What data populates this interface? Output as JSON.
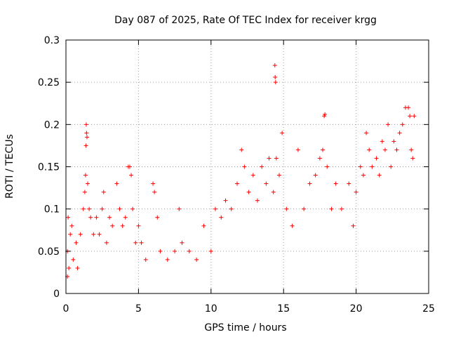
{
  "chart_data": {
    "type": "scatter",
    "title": "Day 087 of 2025, Rate Of TEC Index for receiver krgg",
    "xlabel": "GPS time / hours",
    "ylabel": "ROTI / TECUs",
    "xlim": [
      0,
      25
    ],
    "ylim": [
      0,
      0.3
    ],
    "xticks": [
      "0",
      "5",
      "10",
      "15",
      "20",
      "25"
    ],
    "yticks": [
      "0",
      "0.05",
      "0.1",
      "0.15",
      "0.2",
      "0.25",
      "0.3"
    ],
    "grid": true,
    "marker": "plus",
    "color": "#ff0000",
    "series": [
      {
        "name": "",
        "points": [
          [
            0.1,
            0.02
          ],
          [
            0.1,
            0.05
          ],
          [
            0.15,
            0.09
          ],
          [
            0.2,
            0.03
          ],
          [
            0.3,
            0.07
          ],
          [
            0.4,
            0.08
          ],
          [
            0.5,
            0.04
          ],
          [
            0.7,
            0.06
          ],
          [
            0.8,
            0.03
          ],
          [
            1.0,
            0.07
          ],
          [
            1.2,
            0.1
          ],
          [
            1.3,
            0.12
          ],
          [
            1.35,
            0.14
          ],
          [
            1.4,
            0.2
          ],
          [
            1.42,
            0.19
          ],
          [
            1.45,
            0.185
          ],
          [
            1.38,
            0.175
          ],
          [
            1.5,
            0.13
          ],
          [
            1.6,
            0.1
          ],
          [
            1.7,
            0.09
          ],
          [
            1.9,
            0.07
          ],
          [
            2.1,
            0.09
          ],
          [
            2.3,
            0.07
          ],
          [
            2.5,
            0.1
          ],
          [
            2.6,
            0.12
          ],
          [
            2.8,
            0.06
          ],
          [
            3.0,
            0.09
          ],
          [
            3.2,
            0.08
          ],
          [
            3.5,
            0.13
          ],
          [
            3.7,
            0.1
          ],
          [
            3.9,
            0.08
          ],
          [
            4.1,
            0.09
          ],
          [
            4.3,
            0.15
          ],
          [
            4.4,
            0.15
          ],
          [
            4.5,
            0.14
          ],
          [
            4.6,
            0.1
          ],
          [
            4.8,
            0.06
          ],
          [
            5.0,
            0.08
          ],
          [
            5.2,
            0.06
          ],
          [
            5.5,
            0.04
          ],
          [
            6.0,
            0.13
          ],
          [
            6.1,
            0.12
          ],
          [
            6.3,
            0.09
          ],
          [
            6.5,
            0.05
          ],
          [
            7.0,
            0.04
          ],
          [
            7.5,
            0.05
          ],
          [
            7.8,
            0.1
          ],
          [
            8.0,
            0.06
          ],
          [
            8.5,
            0.05
          ],
          [
            9.0,
            0.04
          ],
          [
            9.5,
            0.08
          ],
          [
            10.0,
            0.05
          ],
          [
            10.3,
            0.1
          ],
          [
            10.7,
            0.09
          ],
          [
            11.0,
            0.11
          ],
          [
            11.4,
            0.1
          ],
          [
            11.8,
            0.13
          ],
          [
            12.1,
            0.17
          ],
          [
            12.3,
            0.15
          ],
          [
            12.6,
            0.12
          ],
          [
            12.9,
            0.14
          ],
          [
            13.2,
            0.11
          ],
          [
            13.5,
            0.15
          ],
          [
            13.8,
            0.13
          ],
          [
            14.0,
            0.16
          ],
          [
            14.3,
            0.12
          ],
          [
            14.4,
            0.27
          ],
          [
            14.42,
            0.256
          ],
          [
            14.45,
            0.25
          ],
          [
            14.5,
            0.16
          ],
          [
            14.7,
            0.14
          ],
          [
            14.9,
            0.19
          ],
          [
            15.2,
            0.1
          ],
          [
            15.6,
            0.08
          ],
          [
            16.0,
            0.17
          ],
          [
            16.4,
            0.1
          ],
          [
            16.8,
            0.13
          ],
          [
            17.2,
            0.14
          ],
          [
            17.5,
            0.16
          ],
          [
            17.7,
            0.17
          ],
          [
            17.8,
            0.21
          ],
          [
            17.85,
            0.212
          ],
          [
            18.0,
            0.15
          ],
          [
            18.3,
            0.1
          ],
          [
            18.6,
            0.13
          ],
          [
            19.0,
            0.1
          ],
          [
            19.5,
            0.13
          ],
          [
            19.8,
            0.08
          ],
          [
            20.0,
            0.12
          ],
          [
            20.3,
            0.15
          ],
          [
            20.5,
            0.14
          ],
          [
            20.7,
            0.19
          ],
          [
            20.9,
            0.17
          ],
          [
            21.1,
            0.15
          ],
          [
            21.4,
            0.16
          ],
          [
            21.6,
            0.14
          ],
          [
            21.8,
            0.18
          ],
          [
            22.0,
            0.17
          ],
          [
            22.2,
            0.2
          ],
          [
            22.4,
            0.15
          ],
          [
            22.6,
            0.18
          ],
          [
            22.8,
            0.17
          ],
          [
            23.0,
            0.19
          ],
          [
            23.2,
            0.2
          ],
          [
            23.4,
            0.22
          ],
          [
            23.6,
            0.22
          ],
          [
            23.7,
            0.21
          ],
          [
            23.8,
            0.17
          ],
          [
            23.9,
            0.16
          ],
          [
            24.0,
            0.21
          ]
        ]
      }
    ]
  }
}
